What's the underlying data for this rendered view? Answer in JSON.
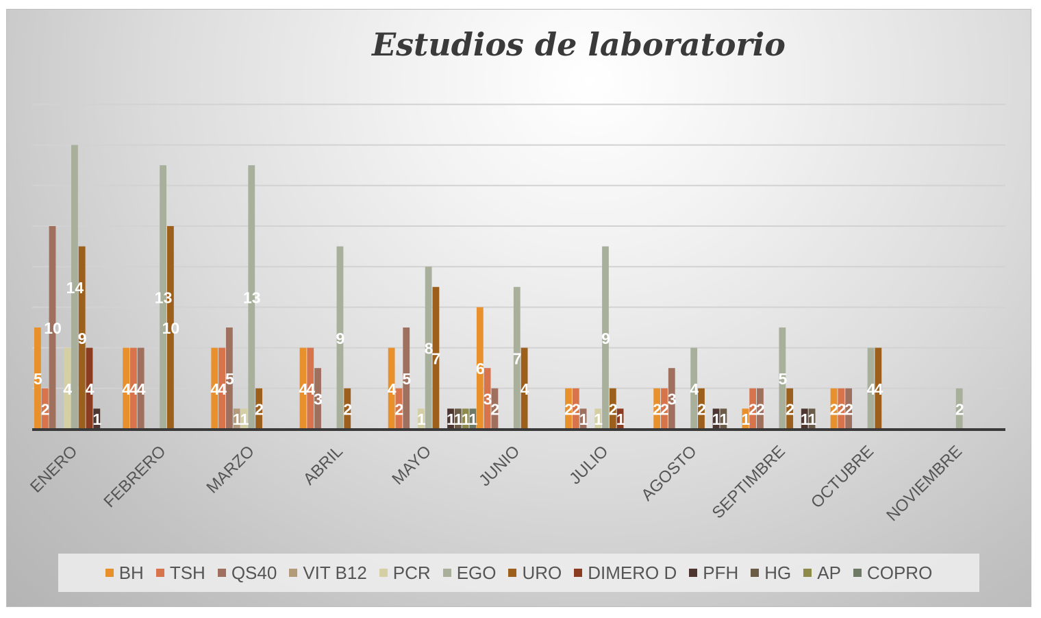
{
  "chart_data": {
    "type": "bar",
    "title": "Estudios de laboratorio",
    "xlabel": "",
    "ylabel": "",
    "ylim": [
      0,
      16
    ],
    "grid": true,
    "legend_position": "bottom",
    "categories": [
      "ENERO",
      "FEBRERO",
      "MARZO",
      "ABRIL",
      "MAYO",
      "JUNIO",
      "JULIO",
      "AGOSTO",
      "SEPTIMBRE",
      "OCTUBRE",
      "NOVIEMBRE"
    ],
    "series": [
      {
        "name": "BH",
        "color": "#e8912c",
        "values": [
          5,
          4,
          4,
          4,
          4,
          6,
          2,
          2,
          1,
          2,
          0
        ]
      },
      {
        "name": "TSH",
        "color": "#d7744b",
        "values": [
          2,
          4,
          4,
          4,
          2,
          3,
          2,
          2,
          2,
          2,
          0
        ]
      },
      {
        "name": "QS40",
        "color": "#a0705f",
        "values": [
          10,
          4,
          5,
          3,
          5,
          2,
          1,
          3,
          2,
          2,
          0
        ]
      },
      {
        "name": "VIT B12",
        "color": "#b39a7b",
        "values": [
          0,
          0,
          1,
          0,
          0,
          0,
          0,
          0,
          0,
          0,
          0
        ]
      },
      {
        "name": "PCR",
        "color": "#d5cfa6",
        "values": [
          4,
          0,
          1,
          0,
          1,
          0,
          1,
          0,
          0,
          0,
          0
        ]
      },
      {
        "name": "EGO",
        "color": "#a8b09c",
        "values": [
          14,
          13,
          13,
          9,
          8,
          7,
          9,
          4,
          5,
          4,
          2
        ]
      },
      {
        "name": "URO",
        "color": "#9c5f1c",
        "values": [
          9,
          10,
          2,
          2,
          7,
          4,
          2,
          2,
          2,
          4,
          0
        ]
      },
      {
        "name": "DIMERO D",
        "color": "#8a3b20",
        "values": [
          4,
          0,
          0,
          0,
          0,
          0,
          1,
          0,
          0,
          0,
          0
        ]
      },
      {
        "name": "PFH",
        "color": "#4d3630",
        "values": [
          1,
          0,
          0,
          0,
          1,
          0,
          0,
          1,
          1,
          0,
          0
        ]
      },
      {
        "name": "HG",
        "color": "#6b5c48",
        "values": [
          0,
          0,
          0,
          0,
          1,
          0,
          0,
          1,
          1,
          0,
          0
        ]
      },
      {
        "name": "AP",
        "color": "#8e8a4a",
        "values": [
          0,
          0,
          0,
          0,
          1,
          0,
          0,
          0,
          0,
          0,
          0
        ]
      },
      {
        "name": "COPRO",
        "color": "#6e7a66",
        "values": [
          0,
          0,
          0,
          0,
          1,
          0,
          0,
          0,
          0,
          0,
          0
        ]
      }
    ]
  }
}
